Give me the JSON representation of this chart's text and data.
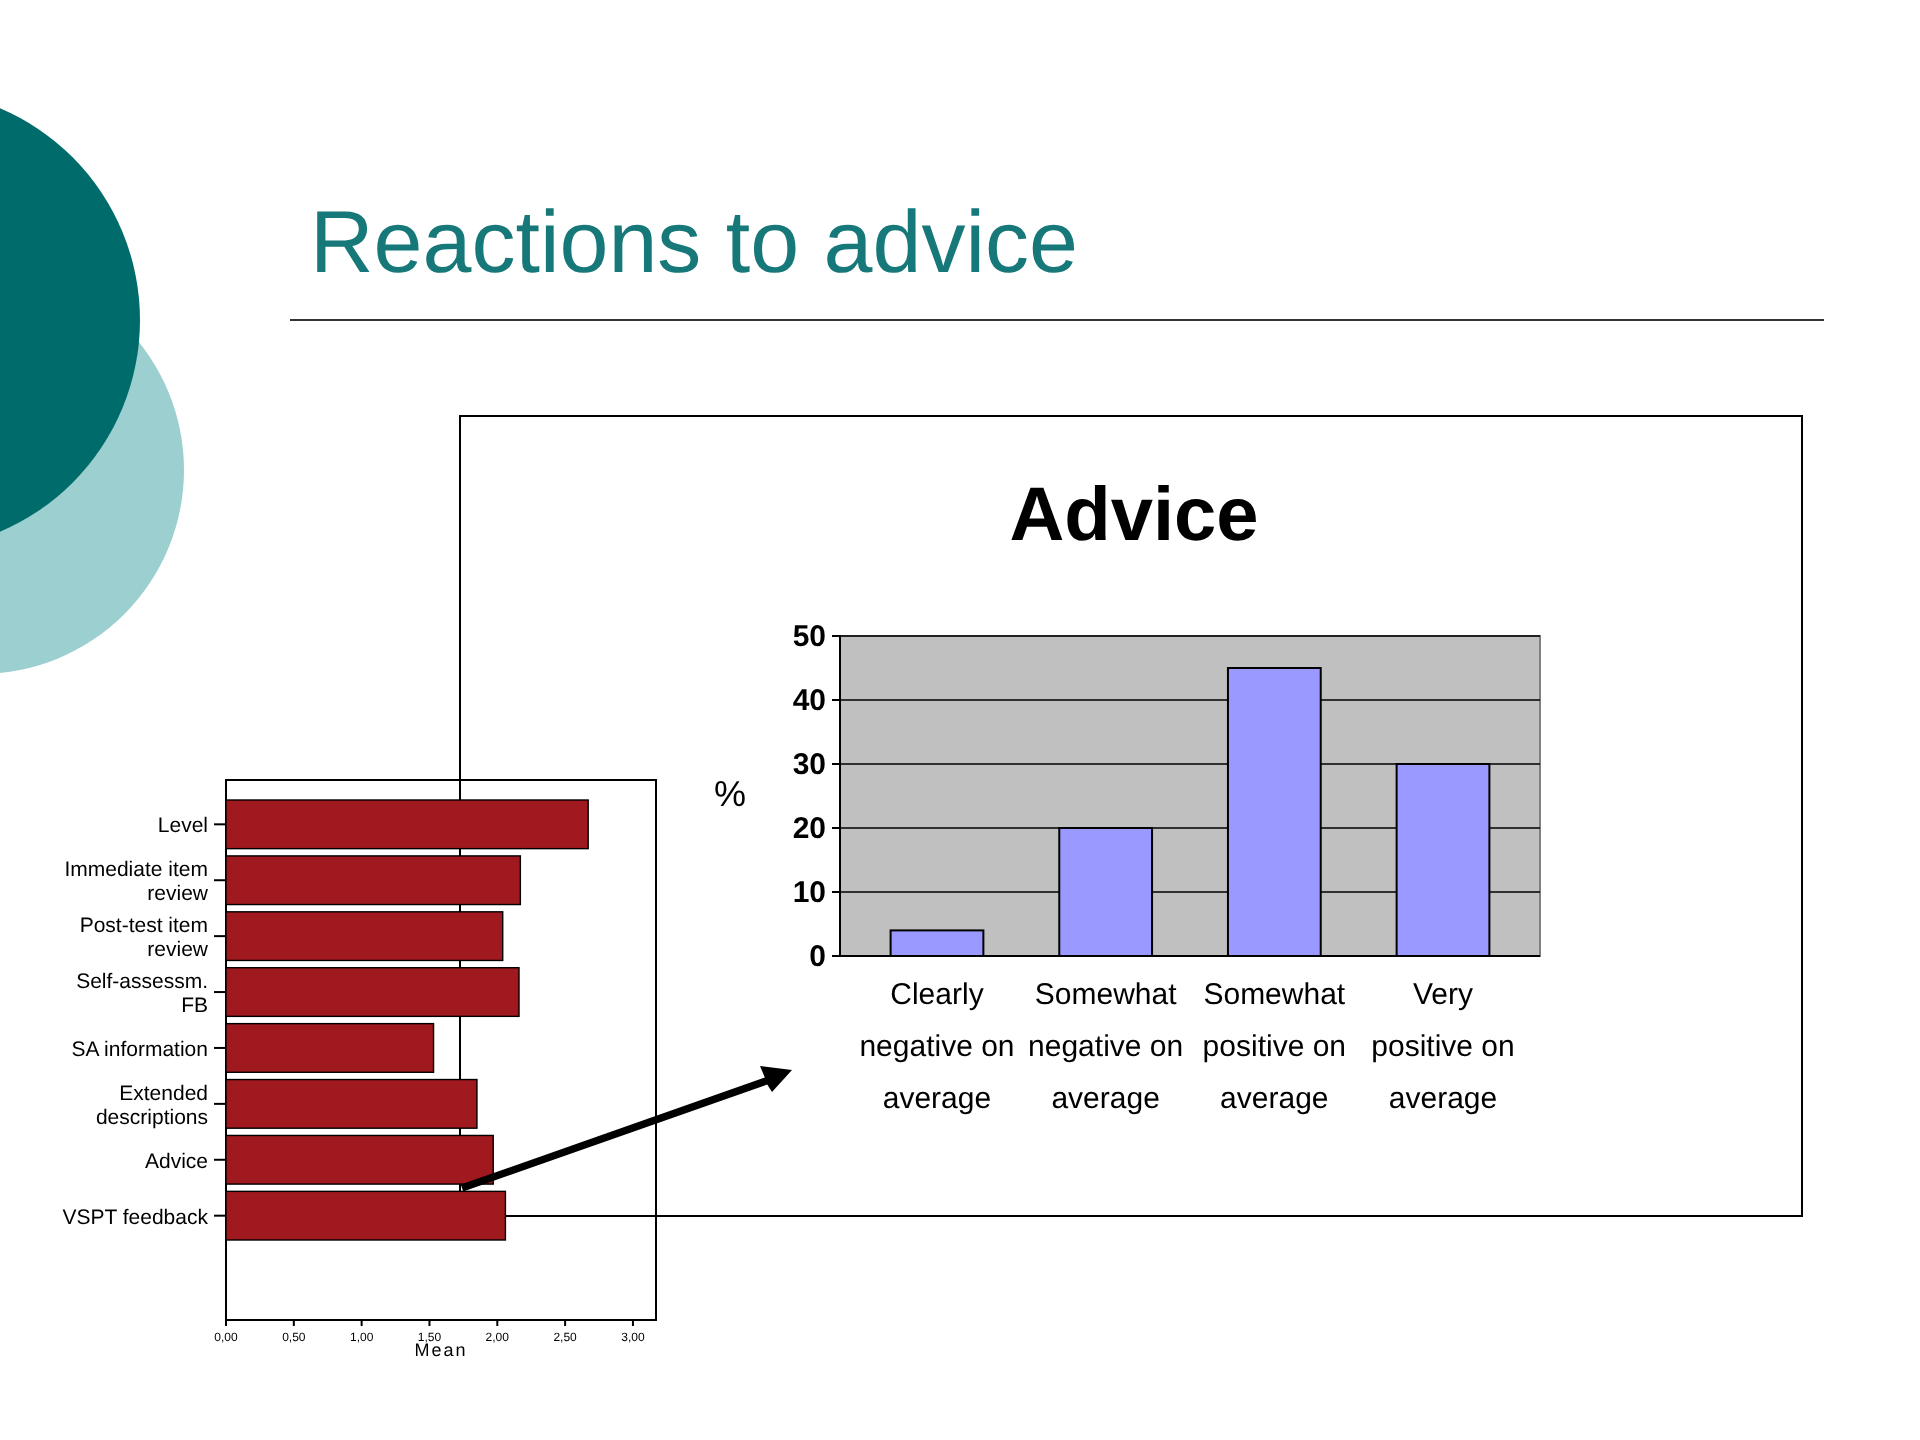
{
  "chart_data": [
    {
      "type": "bar",
      "title": "Reactions to advice",
      "orientation": "horizontal",
      "categories": [
        "Level",
        "Immediate item review",
        "Post-test item review",
        "Self-assessm. FB",
        "SA information",
        "Extended descriptions",
        "Advice",
        "VSPT feedback"
      ],
      "values": [
        2.67,
        2.17,
        2.04,
        2.16,
        1.53,
        1.85,
        1.97,
        2.06
      ],
      "color": "#a0191e",
      "xlabel": "Mean",
      "xlim": [
        0,
        3.17
      ],
      "xticks": [
        {
          "value": 0,
          "label": "0,00"
        },
        {
          "value": 0.5,
          "label": "0,50"
        },
        {
          "value": 1,
          "label": "1,00"
        },
        {
          "value": 1.5,
          "label": "1,50"
        },
        {
          "value": 2,
          "label": "2,00"
        },
        {
          "value": 2.5,
          "label": "2,50"
        },
        {
          "value": 3,
          "label": "3,00"
        }
      ],
      "grid": false
    },
    {
      "type": "bar",
      "title": "Advice",
      "categories": [
        "Clearly negative on average",
        "Somewhat negative on average",
        "Somewhat positive on average",
        "Very positive on average"
      ],
      "values": [
        4,
        20,
        45,
        30
      ],
      "color": "#9999ff",
      "ylabel": "%",
      "ylim": [
        0,
        50
      ],
      "yticks": [
        0,
        10,
        20,
        30,
        40,
        50
      ],
      "grid": "y"
    }
  ]
}
